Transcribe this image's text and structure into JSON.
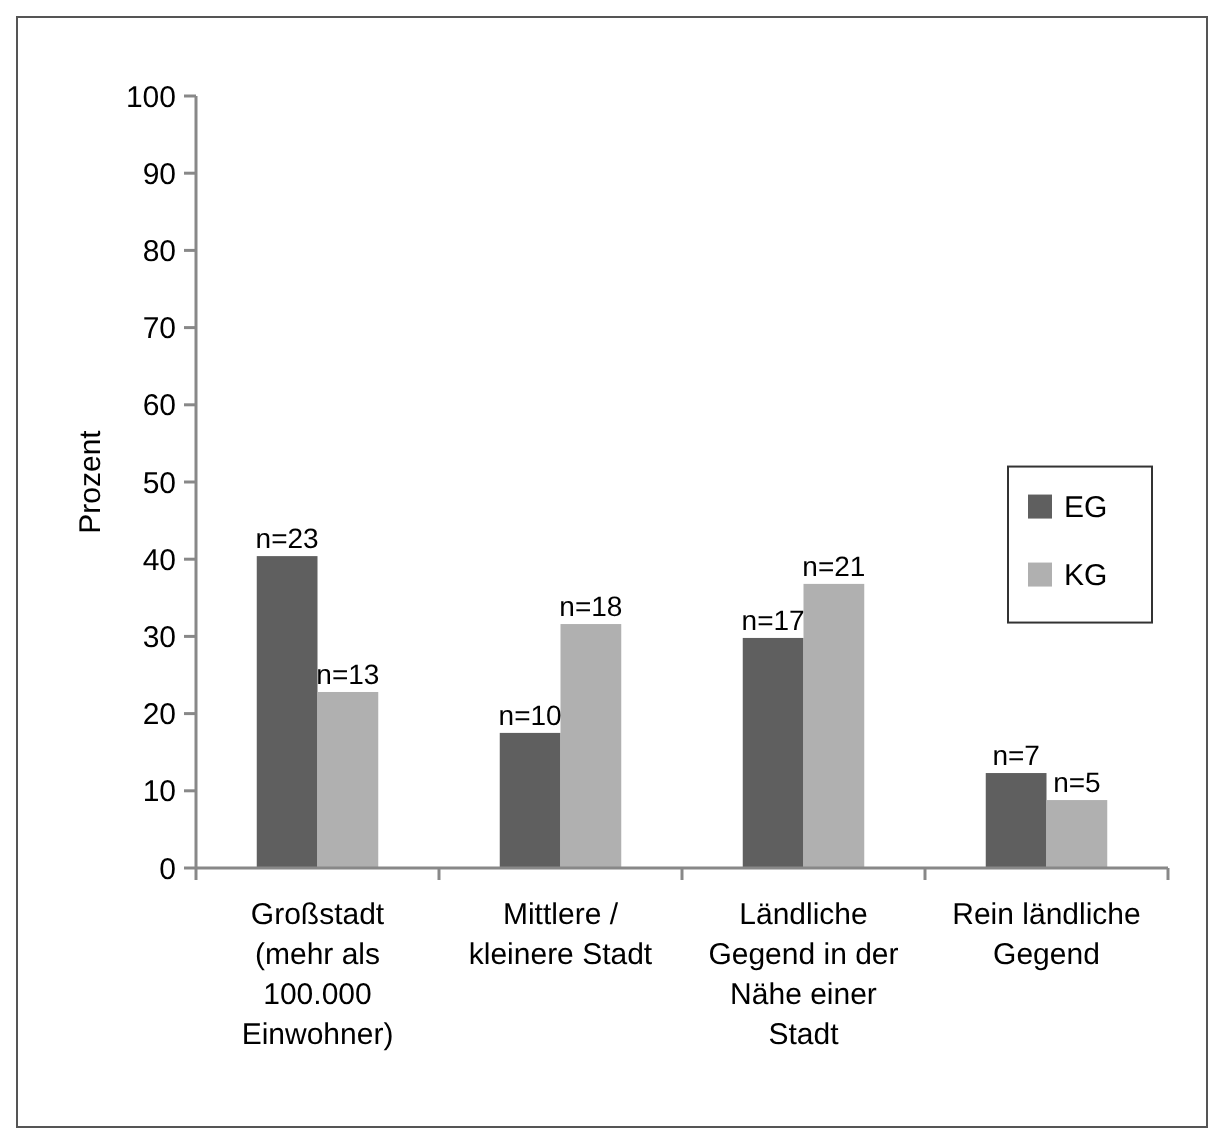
{
  "chart_data": {
    "type": "bar",
    "ylabel": "Prozent",
    "categories": [
      "Großstadt (mehr als 100.000 Einwohner)",
      "Mittlere / kleinere Stadt",
      "Ländliche Gegend in der Nähe einer Stadt",
      "Rein ländliche Gegend"
    ],
    "series": [
      {
        "name": "EG",
        "color": "#5f5f5f",
        "values": [
          40.4,
          17.5,
          29.8,
          12.3
        ]
      },
      {
        "name": "KG",
        "color": "#b0b0b0",
        "values": [
          22.8,
          31.6,
          36.8,
          8.8
        ]
      }
    ],
    "annotations": [
      {
        "text": "n=23",
        "x": "Großstadt (mehr als 100.000 Einwohner)",
        "y": 40.4
      },
      {
        "text": "n=10",
        "x": "Mittlere / kleinere Stadt",
        "y": 17.5
      },
      {
        "text": "n=17",
        "x": "Ländliche Gegend in der Nähe einer Stadt",
        "y": 29.8
      },
      {
        "text": "n=7",
        "x": "Rein ländliche Gegend",
        "y": 12.3
      },
      {
        "text": "n=13",
        "x": "Großstadt (mehr als 100.000 Einwohner)",
        "y": 22.8
      },
      {
        "text": "n=18",
        "x": "Mittlere / kleinere Stadt",
        "y": 31.6
      },
      {
        "text": "n=21",
        "x": "Ländliche Gegend in der Nähe einer Stadt",
        "y": 36.8
      },
      {
        "text": "n=5",
        "x": "Rein ländliche Gegend",
        "y": 8.8
      }
    ],
    "ylim": [
      0,
      100
    ],
    "yticks": [
      0,
      10,
      20,
      30,
      40,
      50,
      60,
      70,
      80,
      90,
      100
    ],
    "grid": false,
    "legend": "right"
  }
}
